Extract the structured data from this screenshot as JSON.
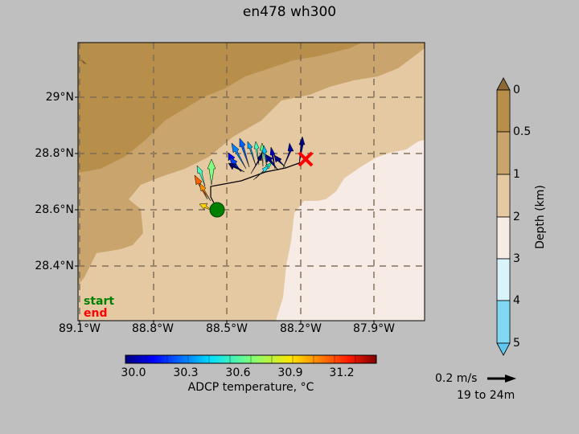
{
  "title": "en478 wh300",
  "map": {
    "lat_labels": [
      "29°N",
      "28.8°N",
      "28.6°N",
      "28.4°N"
    ],
    "lon_labels": [
      "89.1°W",
      "88.8°W",
      "88.5°W",
      "88.2°W",
      "87.9°W"
    ],
    "legend": {
      "start": "start",
      "end": "end"
    },
    "start_color": "#008000",
    "end_color": "#ff0000"
  },
  "temp_colorbar": {
    "ticks": [
      "30.0",
      "30.3",
      "30.6",
      "30.9",
      "31.2"
    ],
    "label": "ADCP temperature, °C"
  },
  "depth_colorbar": {
    "ticks": [
      "0",
      "0.5",
      "1",
      "2",
      "3",
      "4",
      "5"
    ],
    "label": "Depth (km)"
  },
  "scale": {
    "speed_label": "0.2 m/s",
    "depth_range_label": "19 to 24m"
  }
}
